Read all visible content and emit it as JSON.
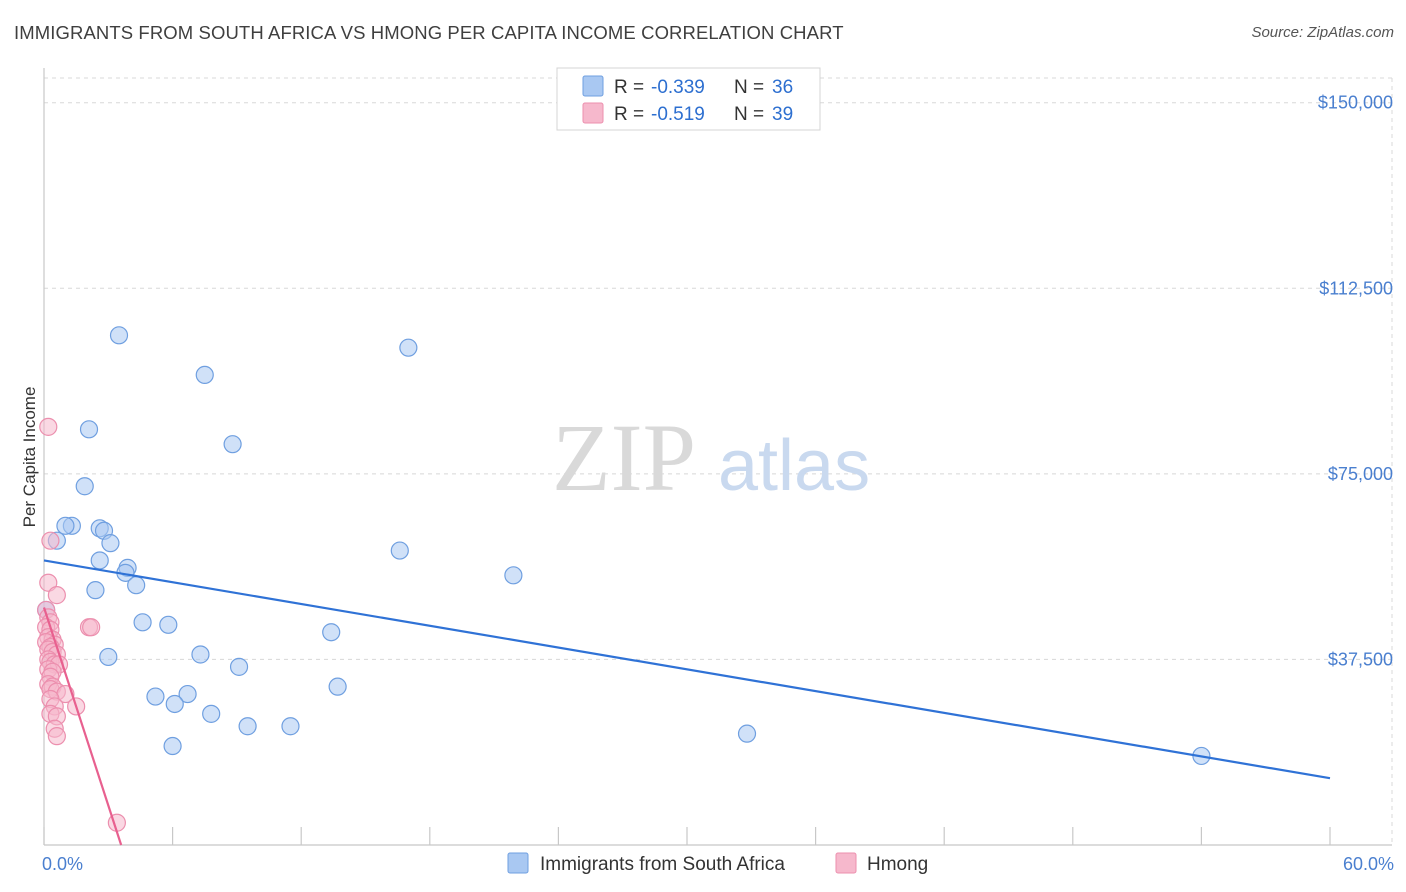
{
  "title": "IMMIGRANTS FROM SOUTH AFRICA VS HMONG PER CAPITA INCOME CORRELATION CHART",
  "source": "Source: ZipAtlas.com",
  "watermark": {
    "zip": "ZIP",
    "atlas": "atlas"
  },
  "colors": {
    "blue_fill": "#a9c8f2",
    "blue_stroke": "#6f9fe0",
    "blue_line": "#2f72d6",
    "pink_fill": "#f6b8cc",
    "pink_stroke": "#ec8fae",
    "pink_line": "#e8608f",
    "grid": "#d8d8d8",
    "axis_text": "#4a7fcf"
  },
  "legend": {
    "rows": [
      {
        "r_label": "R =",
        "r_value": "-0.339",
        "n_label": "N =",
        "n_value": "36"
      },
      {
        "r_label": "R =",
        "r_value": "-0.519",
        "n_label": "N =",
        "n_value": "39"
      }
    ]
  },
  "chart_data": {
    "type": "scatter",
    "title": "IMMIGRANTS FROM SOUTH AFRICA VS HMONG PER CAPITA INCOME CORRELATION CHART",
    "xlabel": "",
    "ylabel": "Per Capita Income",
    "xlim": [
      0,
      60
    ],
    "ylim": [
      0,
      155000
    ],
    "x_tick_labels": [
      "0.0%",
      "60.0%"
    ],
    "y_ticks": [
      37500,
      75000,
      112500,
      150000
    ],
    "y_tick_labels": [
      "$37,500",
      "$75,000",
      "$112,500",
      "$150,000"
    ],
    "grid": true,
    "series": [
      {
        "name": "Immigrants from South Africa",
        "points": [
          [
            3.5,
            103000
          ],
          [
            17.0,
            100500
          ],
          [
            7.5,
            95000
          ],
          [
            2.1,
            84000
          ],
          [
            8.8,
            81000
          ],
          [
            1.9,
            72500
          ],
          [
            1.3,
            64500
          ],
          [
            2.6,
            64000
          ],
          [
            1.0,
            64500
          ],
          [
            2.8,
            63500
          ],
          [
            0.6,
            61500
          ],
          [
            3.1,
            61000
          ],
          [
            16.6,
            59500
          ],
          [
            2.6,
            57500
          ],
          [
            3.9,
            56000
          ],
          [
            3.8,
            55000
          ],
          [
            21.9,
            54500
          ],
          [
            4.3,
            52500
          ],
          [
            2.4,
            51500
          ],
          [
            0.1,
            47500
          ],
          [
            4.6,
            45000
          ],
          [
            5.8,
            44500
          ],
          [
            13.4,
            43000
          ],
          [
            3.0,
            38000
          ],
          [
            7.3,
            38500
          ],
          [
            9.1,
            36000
          ],
          [
            13.7,
            32000
          ],
          [
            5.2,
            30000
          ],
          [
            6.7,
            30500
          ],
          [
            6.1,
            28500
          ],
          [
            7.8,
            26500
          ],
          [
            9.5,
            24000
          ],
          [
            11.5,
            24000
          ],
          [
            32.8,
            22500
          ],
          [
            6.0,
            20000
          ],
          [
            54.0,
            18000
          ]
        ],
        "trend": {
          "x": [
            0,
            60
          ],
          "y": [
            57500,
            13500
          ]
        }
      },
      {
        "name": "Hmong",
        "points": [
          [
            0.2,
            84500
          ],
          [
            0.3,
            61500
          ],
          [
            0.2,
            53000
          ],
          [
            0.6,
            50500
          ],
          [
            0.1,
            47500
          ],
          [
            0.2,
            46000
          ],
          [
            0.3,
            45000
          ],
          [
            0.1,
            44000
          ],
          [
            2.1,
            44000
          ],
          [
            2.2,
            44000
          ],
          [
            0.3,
            43500
          ],
          [
            0.2,
            42000
          ],
          [
            0.4,
            41500
          ],
          [
            0.1,
            41000
          ],
          [
            0.5,
            40500
          ],
          [
            0.3,
            40000
          ],
          [
            0.2,
            39500
          ],
          [
            0.4,
            39000
          ],
          [
            0.6,
            38500
          ],
          [
            0.2,
            37500
          ],
          [
            0.3,
            37000
          ],
          [
            0.5,
            36500
          ],
          [
            0.7,
            36500
          ],
          [
            0.2,
            35500
          ],
          [
            0.4,
            35000
          ],
          [
            0.3,
            34000
          ],
          [
            0.2,
            32500
          ],
          [
            0.4,
            32000
          ],
          [
            0.3,
            31500
          ],
          [
            0.6,
            31000
          ],
          [
            1.0,
            30500
          ],
          [
            0.3,
            29500
          ],
          [
            0.5,
            28000
          ],
          [
            1.5,
            28000
          ],
          [
            0.3,
            26500
          ],
          [
            0.6,
            26000
          ],
          [
            0.5,
            23500
          ],
          [
            0.6,
            22000
          ],
          [
            3.4,
            4500
          ]
        ],
        "trend": {
          "x": [
            0,
            3.6
          ],
          "y": [
            48000,
            0
          ]
        }
      }
    ]
  }
}
